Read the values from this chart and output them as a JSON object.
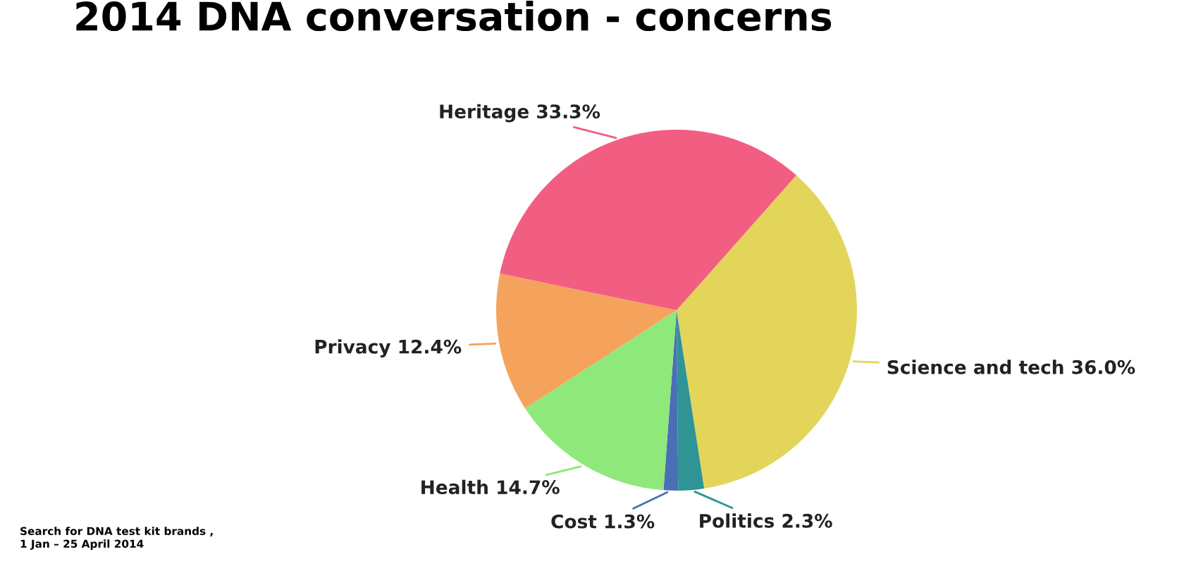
{
  "chart_data": {
    "type": "pie",
    "title": "2014 DNA conversation - concerns",
    "categories": [
      "Science and tech",
      "Politics",
      "Cost",
      "Health",
      "Privacy",
      "Heritage"
    ],
    "values": [
      36.0,
      2.3,
      1.3,
      14.7,
      12.4,
      33.3
    ],
    "value_labels": [
      "36.0%",
      "2.3%",
      "1.3%",
      "14.7%",
      "12.4%",
      "33.3%"
    ],
    "colors": [
      "#e3d55a",
      "#2e9496",
      "#4a6fb5",
      "#8fe87a",
      "#f5a35c",
      "#f25e82"
    ],
    "legend": false,
    "annotations": [
      "Search for DNA test kit brands ,",
      "1 Jan – 25 April 2014"
    ]
  }
}
